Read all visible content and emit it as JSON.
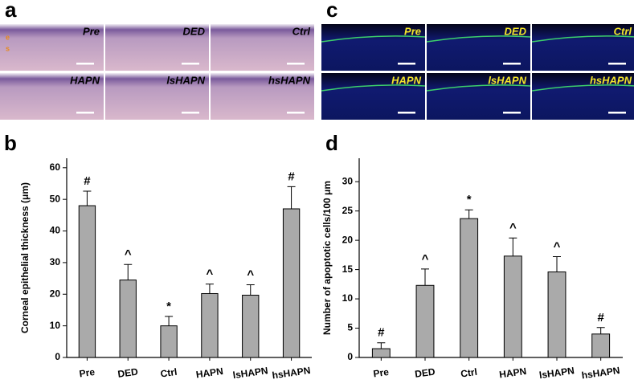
{
  "panels": [
    {
      "letter": "a",
      "labels": [
        "Pre",
        "DED",
        "Ctrl",
        "HAPN",
        "lsHAPN",
        "hsHAPN"
      ],
      "layer_labels": [
        "e",
        "s"
      ]
    },
    {
      "letter": "c",
      "labels": [
        "Pre",
        "DED",
        "Ctrl",
        "HAPN",
        "lsHAPN",
        "hsHAPN"
      ]
    }
  ],
  "chart_data": [
    {
      "type": "bar",
      "panel_letter": "b",
      "ylabel": "Corneal epithelial thickness (μm)",
      "categories": [
        "Pre",
        "DED",
        "Ctrl",
        "HAPN",
        "lsHAPN",
        "hsHAPN"
      ],
      "values": [
        48,
        24.5,
        10,
        20.2,
        19.7,
        47
      ],
      "errors": [
        4.6,
        4.9,
        3,
        3,
        3.3,
        7
      ],
      "annotations": [
        "#",
        "^",
        "*",
        "^",
        "^",
        "#"
      ],
      "color": "#aaaaaa",
      "ylim": [
        0,
        63
      ],
      "yticks": [
        0,
        10,
        20,
        30,
        40,
        50,
        60
      ]
    },
    {
      "type": "bar",
      "panel_letter": "d",
      "ylabel": "Number of apoptotic cells/100 μm",
      "categories": [
        "Pre",
        "DED",
        "Ctrl",
        "HAPN",
        "lsHAPN",
        "hsHAPN"
      ],
      "values": [
        1.5,
        12.3,
        23.7,
        17.3,
        14.6,
        4
      ],
      "errors": [
        1,
        2.8,
        1.5,
        3.1,
        2.6,
        1.1
      ],
      "annotations": [
        "#",
        "^",
        "*",
        "^",
        "^",
        "#"
      ],
      "color": "#aaaaaa",
      "ylim": [
        0,
        34
      ],
      "yticks": [
        0,
        5,
        10,
        15,
        20,
        25,
        30
      ]
    }
  ]
}
